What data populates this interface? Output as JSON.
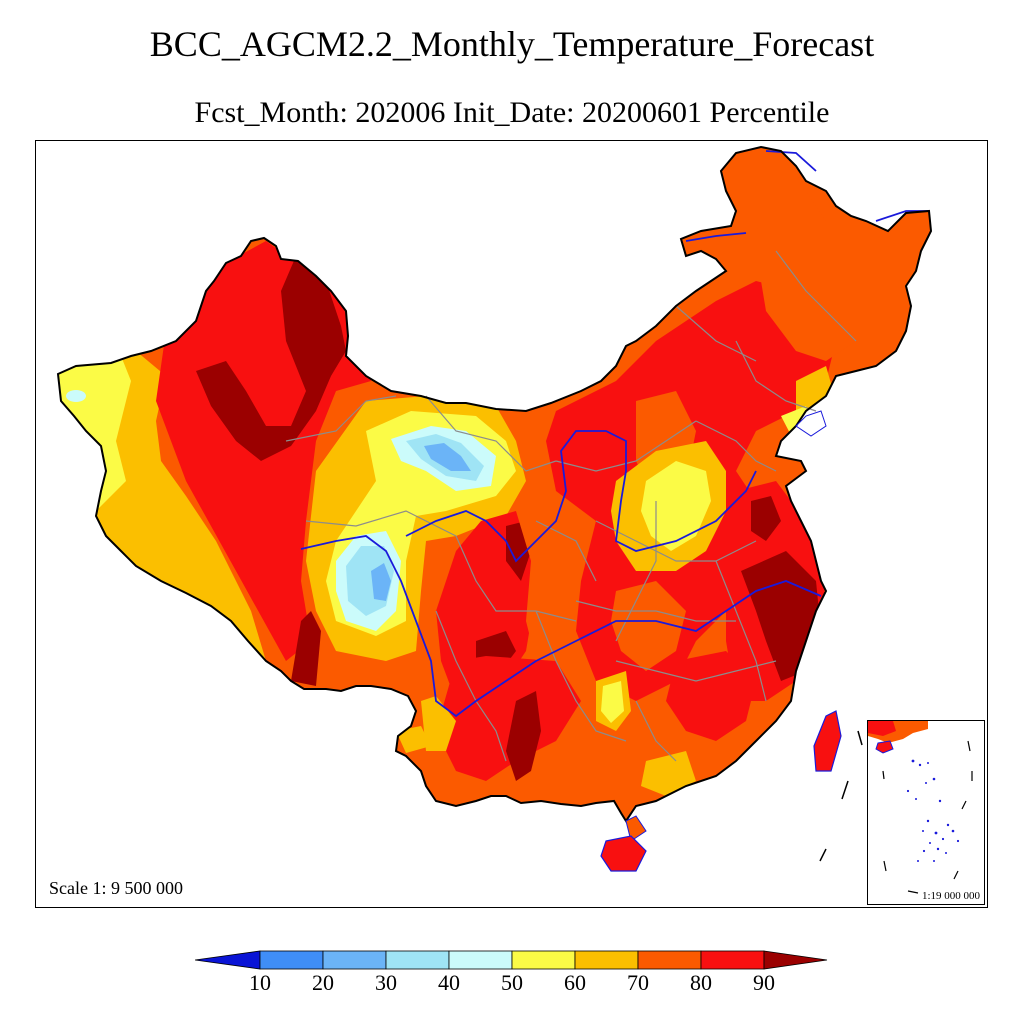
{
  "title": "BCC_AGCM2.2_Monthly_Temperature_Forecast",
  "subtitle": "Fcst_Month: 202006  Init_Date: 20200601  Percentile",
  "map": {
    "scale_text": "Scale 1: 9 500 000",
    "inset_scale_text": "1:19 000 000",
    "river_color": "#1a1adb",
    "border_color": "#000000",
    "province_color": "#8c8c8c"
  },
  "legend": {
    "labels": [
      "10",
      "20",
      "30",
      "40",
      "50",
      "60",
      "70",
      "80",
      "90"
    ],
    "low_arrow_color": "#0a14d6",
    "high_arrow_color": "#9b0000",
    "colors": [
      "#3f8ef7",
      "#6bb4f7",
      "#9fe4f5",
      "#cbfbfb",
      "#fbfb46",
      "#fbbf00",
      "#fb5a00",
      "#f81010"
    ]
  },
  "categories": {
    "c90": "#9b0000",
    "c80": "#f81010",
    "c70": "#fb5a00",
    "c60": "#fbbf00",
    "c50": "#fbfb46",
    "c40": "#cbfbfb",
    "c30": "#9fe4f5",
    "c20": "#6bb4f7",
    "c10": "#3f8ef7"
  }
}
